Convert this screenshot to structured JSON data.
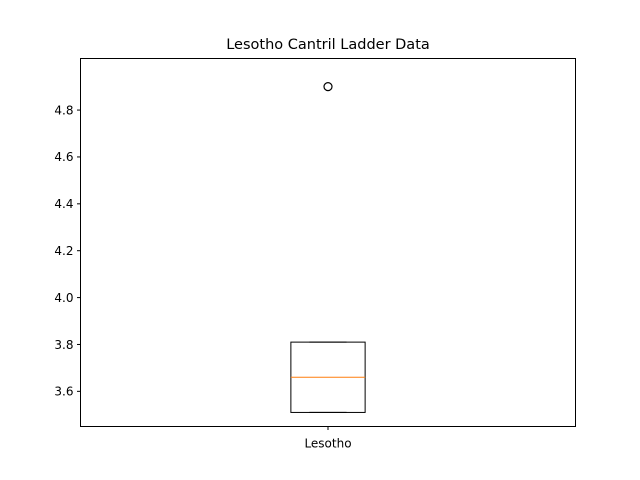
{
  "chart_data": {
    "type": "box",
    "title": "Lesotho Cantril Ladder Data",
    "xlabel": "",
    "ylabel": "",
    "ylim": [
      3.45,
      5.02
    ],
    "yticks": [
      3.6,
      3.8,
      4.0,
      4.2,
      4.4,
      4.6,
      4.8
    ],
    "ytick_labels": [
      "3.6",
      "3.8",
      "4.0",
      "4.2",
      "4.4",
      "4.6",
      "4.8"
    ],
    "categories": [
      "Lesotho"
    ],
    "boxes": [
      {
        "category": "Lesotho",
        "whisker_low": 3.51,
        "q1": 3.51,
        "median": 3.66,
        "q3": 3.81,
        "whisker_high": 3.81,
        "outliers": [
          4.9
        ]
      }
    ],
    "grid": false,
    "colors": {
      "box": "#000000",
      "median": "#ff7f0e",
      "axes": "#000000"
    }
  }
}
